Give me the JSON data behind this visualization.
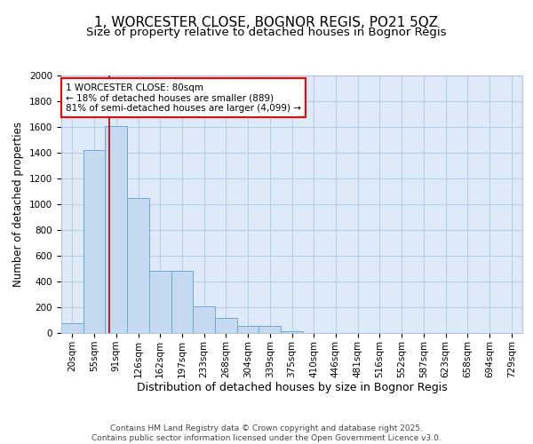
{
  "title": "1, WORCESTER CLOSE, BOGNOR REGIS, PO21 5QZ",
  "subtitle": "Size of property relative to detached houses in Bognor Regis",
  "xlabel": "Distribution of detached houses by size in Bognor Regis",
  "ylabel": "Number of detached properties",
  "categories": [
    "20sqm",
    "55sqm",
    "91sqm",
    "126sqm",
    "162sqm",
    "197sqm",
    "233sqm",
    "268sqm",
    "304sqm",
    "339sqm",
    "375sqm",
    "410sqm",
    "446sqm",
    "481sqm",
    "516sqm",
    "552sqm",
    "587sqm",
    "623sqm",
    "658sqm",
    "694sqm",
    "729sqm"
  ],
  "values": [
    75,
    1420,
    1610,
    1050,
    480,
    480,
    205,
    120,
    55,
    55,
    15,
    0,
    0,
    0,
    0,
    0,
    0,
    0,
    0,
    0,
    0
  ],
  "bar_color": "#c5d9f0",
  "bar_edge_color": "#6aaad4",
  "vline_color": "#aa0000",
  "annotation_text": "1 WORCESTER CLOSE: 80sqm\n← 18% of detached houses are smaller (889)\n81% of semi-detached houses are larger (4,099) →",
  "bg_color": "#deeaf8",
  "grid_color": "#b8cfe8",
  "footer": "Contains HM Land Registry data © Crown copyright and database right 2025.\nContains public sector information licensed under the Open Government Licence v3.0.",
  "ylim": [
    0,
    2000
  ],
  "yticks": [
    0,
    200,
    400,
    600,
    800,
    1000,
    1200,
    1400,
    1600,
    1800,
    2000
  ],
  "title_fontsize": 11,
  "subtitle_fontsize": 9.5,
  "xlabel_fontsize": 9,
  "ylabel_fontsize": 8.5,
  "tick_fontsize": 7.5,
  "footer_fontsize": 6.5,
  "ann_fontsize": 7.5
}
